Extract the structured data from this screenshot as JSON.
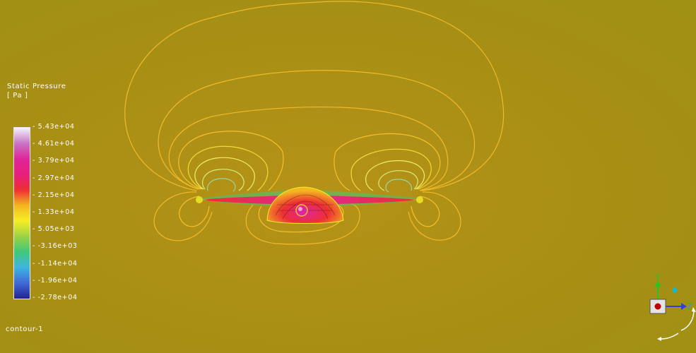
{
  "legend": {
    "title_line1": "Static Pressure",
    "title_line2": "[ Pa ]",
    "ticks": [
      "5.43e+04",
      "4.61e+04",
      "3.79e+04",
      "2.97e+04",
      "2.15e+04",
      "1.33e+04",
      "5.05e+03",
      "-3.16e+03",
      "-1.14e+04",
      "-1.96e+04",
      "-2.78e+04"
    ],
    "colormap": [
      "#f4f4fb",
      "#c775c4",
      "#e0259a",
      "#e6207c",
      "#ee2f33",
      "#f3b621",
      "#f6ee24",
      "#9bd245",
      "#3fc87a",
      "#3fb4e1",
      "#3e6ad6",
      "#23238f"
    ]
  },
  "contour_name": "contour-1",
  "background_color": "#a89014",
  "axes": {
    "y_label": "Y",
    "z_label": "Z"
  }
}
